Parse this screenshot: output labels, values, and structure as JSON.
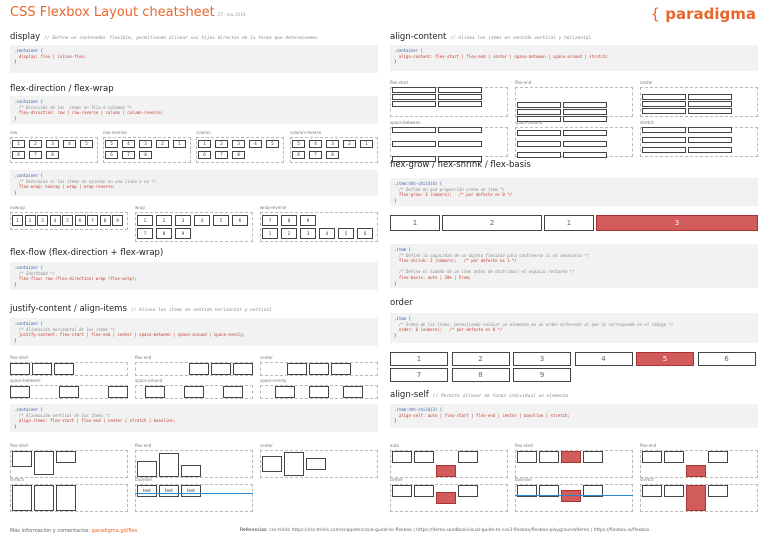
{
  "header": {
    "title": "CSS Flexbox Layout cheatsheet",
    "date": "27 · nov 2019",
    "logo": "paradigma"
  },
  "display": {
    "title": "display",
    "comment": "// Define un contenedor flexible, permitiendo alinear sus hijos directos de la forma que determinemos",
    "code1": ".container {",
    "code2": "  display: flex | inline-flex;",
    "code3": "}"
  },
  "direction": {
    "title": "flex-direction / flex-wrap",
    "code_a": [
      ".container {",
      "  /* Dirección de los  items en fila o columna */",
      "  flex-direction: row | row-reverse | column | column-reverse;",
      "}"
    ],
    "labels": [
      "row",
      "row-reverse",
      "column",
      "column-reverse"
    ],
    "code_b": [
      ".container {",
      "  /* Determina si los items se ajustan en una línea o no */",
      "  flex-wrap: nowrap | wrap | wrap-reverse;",
      "}"
    ],
    "wrap_labels": [
      "nowrap",
      "wrap",
      "wrap-reverse"
    ],
    "n": [
      "1",
      "2",
      "3",
      "4",
      "5",
      "6",
      "7",
      "8",
      "9"
    ]
  },
  "flow": {
    "title": "flex-flow (flex-direction + flex-wrap)",
    "code": [
      ".container {",
      "  /* Shorthand */",
      "  flex-flow: row (flex-direction) wrap (flex-wrap);",
      "}"
    ]
  },
  "justify": {
    "title": "justify-content / align-items",
    "comment": "// Alinea los items en sentido horizontal y vertical",
    "code_a": [
      ".container {",
      "  /* Alineación horizontal de los items */",
      "  justify-content: flex-start | flex-end | center | space-between | space-around | space-evenly;",
      "}"
    ],
    "labels": [
      "flex-start",
      "flex-end",
      "center",
      "space-between",
      "space-around",
      "space-evenly"
    ],
    "code_b": [
      ".container {",
      "  /* Alineación vertical de los items */",
      "  align-items: flex-start | flex-end | center | stretch | baseline;",
      "}"
    ],
    "labels_b": [
      "flex-start",
      "flex-end",
      "center",
      "stretch",
      "baseline"
    ],
    "baseline_text": "text"
  },
  "acontent": {
    "title": "align-content",
    "comment": "// Alinea los items en sentido vertical y horizontal",
    "code": [
      ".container {",
      "  align-content: flex-start | flex-end | center | space-between | space-around | stretch;",
      "}"
    ],
    "labels": [
      "flex-start",
      "flex-end",
      "center",
      "space-between",
      "space-around",
      "stretch"
    ]
  },
  "grow": {
    "title": "flex-grow / flex-shrink / flex-basis",
    "code_a": [
      ".item:nth-child(4) {",
      "  /* Define en qué proporción crece un item */",
      "  flex-grow: 3 (número);   /* por defecto es 0 */",
      "}"
    ],
    "vals": [
      "1",
      "2",
      "1",
      "3"
    ],
    "code_b": [
      ".item {",
      "  /* Define la capacidad de un objeto flexible para contraerse si es necesario */",
      "  flex-shrink: 2 (número);   /* por defecto es 1 */",
      "",
      "  /* Define el tamaño de un item antes de distribuir el espacio restante */",
      "  flex-basis: auto | 10% | 5rem;",
      "}"
    ]
  },
  "order": {
    "title": "order",
    "code": [
      ".item {",
      "  /* Orden de los items, permitiendo colocar un elemento en un orden diferente al que le corresponde en el código */",
      "  order: 6 (número);   /* por defecto es 0 */",
      "}"
    ],
    "n": [
      "1",
      "2",
      "3",
      "4",
      "5",
      "6",
      "7",
      "8",
      "9"
    ]
  },
  "aself": {
    "title": "align-self",
    "comment": "// Permite alinear de forma individual un elemento",
    "code": [
      ".item:nth-child(3) {",
      "  align-self: auto | flex-start | flex-end | center | baseline | stretch;",
      "}"
    ],
    "labels": [
      "auto",
      "flex-start",
      "flex-end",
      "center",
      "baseline",
      "stretch"
    ]
  },
  "footer": {
    "left": "Más información y comentarios:",
    "link": "paradigma.gd/flex",
    "refs_label": "Referencias:",
    "refs": "css-tricks https://css-tricks.com/snippets/css/a-guide-to-flexbox | https://demo.sandbox/visual-guide-to-css3-flexbox/flexbox-playground/demo | https://flexbox.io/flexbox"
  }
}
